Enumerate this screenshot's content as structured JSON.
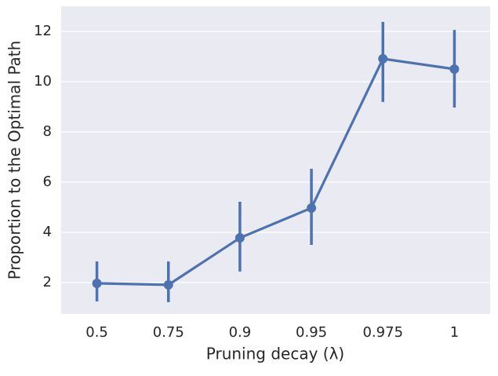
{
  "chart_data": {
    "type": "pointplot",
    "x_label": "Pruning decay (λ)",
    "y_label": "Proportion to the Optimal Path",
    "categories": [
      "0.5",
      "0.75",
      "0.9",
      "0.95",
      "0.975",
      "1"
    ],
    "values": [
      1.97,
      1.91,
      3.78,
      4.97,
      10.91,
      10.5
    ],
    "ci_low": [
      1.25,
      1.22,
      2.44,
      3.5,
      9.19,
      8.97
    ],
    "ci_high": [
      2.84,
      2.84,
      5.22,
      6.53,
      12.38,
      12.06
    ],
    "color": "#4c72b0",
    "ylim": [
      0.75,
      13.0
    ],
    "yticks": [
      2,
      4,
      6,
      8,
      10,
      12
    ],
    "grid": true
  }
}
